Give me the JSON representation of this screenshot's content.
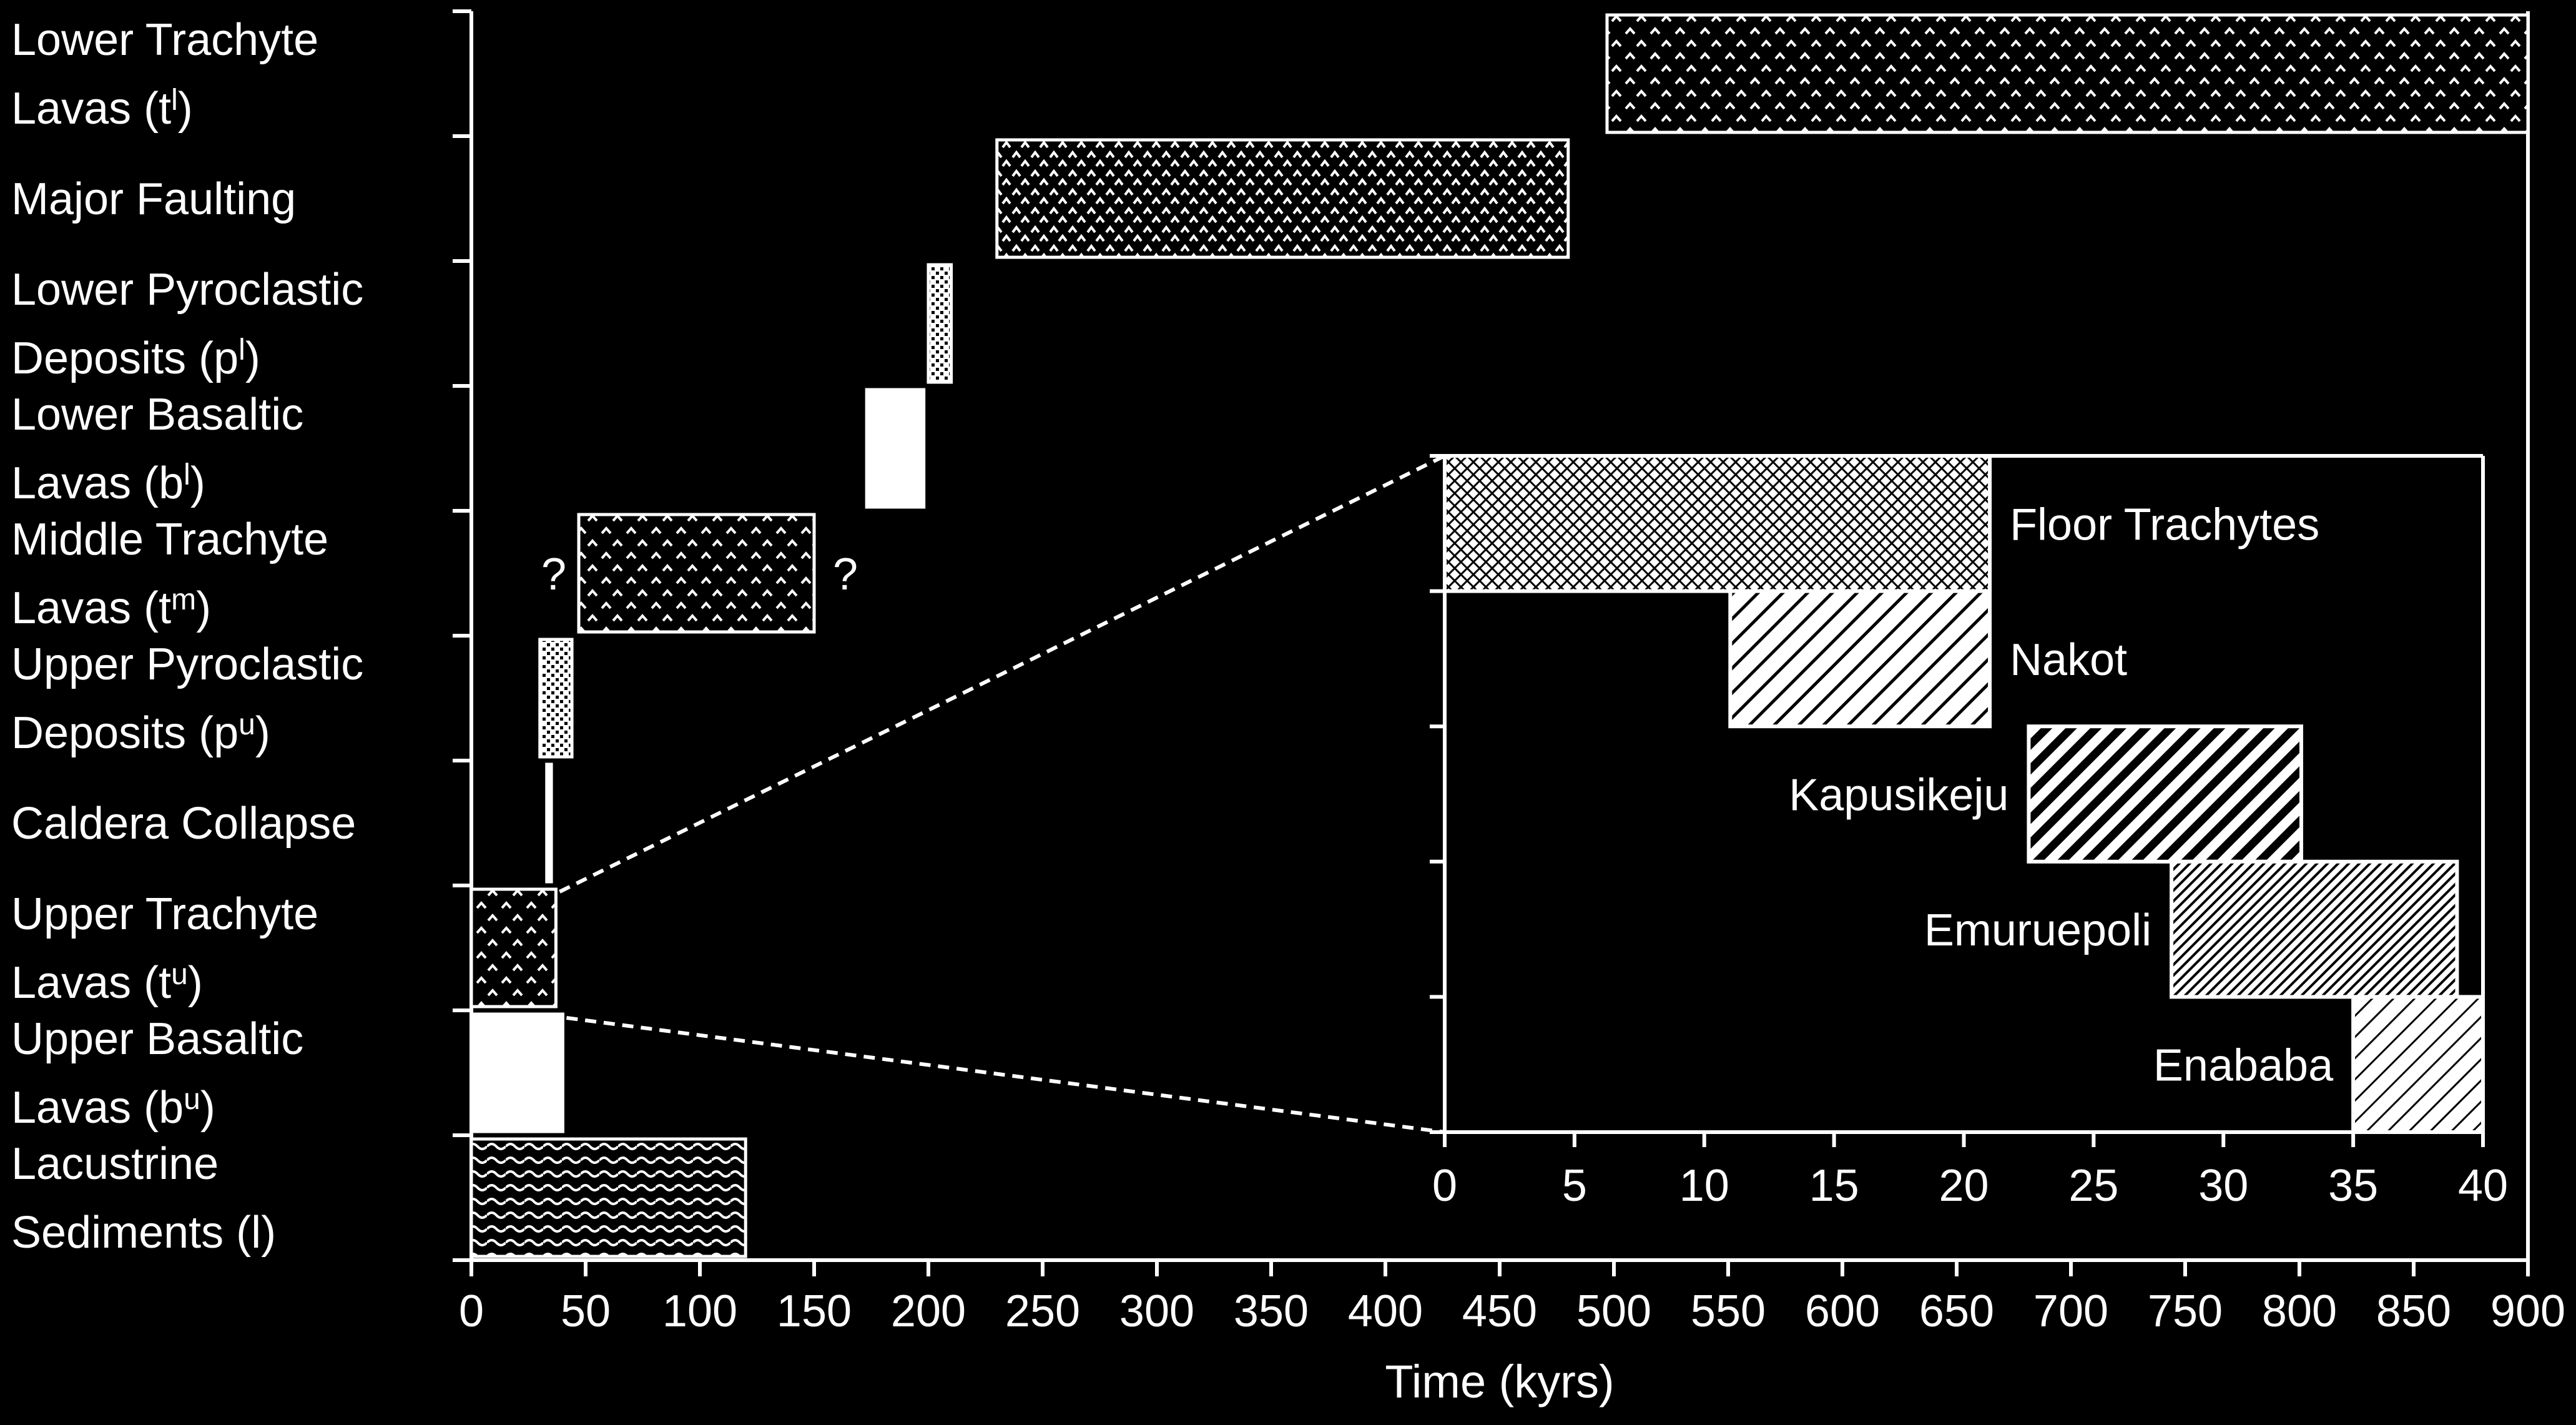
{
  "chart_data": [
    {
      "type": "bar",
      "subtype": "horizontal-range",
      "xlabel": "Time (kyrs)",
      "xlim": [
        0,
        900
      ],
      "xticks": [
        "0",
        "50",
        "100",
        "150",
        "200",
        "250",
        "300",
        "350",
        "400",
        "450",
        "500",
        "550",
        "600",
        "650",
        "700",
        "750",
        "800",
        "850",
        "900"
      ],
      "categories": [
        {
          "label": "Lacustrine Sediments (l)",
          "line1": "Lacustrine",
          "line2": "Sediments (l)"
        },
        {
          "label": "Upper Basaltic Lavas (bu)",
          "line1": "Upper Basaltic",
          "line2_main": "Lavas (b",
          "line2_sup": "u",
          "line2_end": ")"
        },
        {
          "label": "Upper Trachyte Lavas (tu)",
          "line1": "Upper Trachyte",
          "line2_main": "Lavas (t",
          "line2_sup": "u",
          "line2_end": ")"
        },
        {
          "label": "Caldera Collapse",
          "line1": "Caldera Collapse"
        },
        {
          "label": "Upper Pyroclastic Deposits (pu)",
          "line1": "Upper Pyroclastic",
          "line2_main": "Deposits (p",
          "line2_sup": "u",
          "line2_end": ")"
        },
        {
          "label": "Middle Trachyte Lavas (tm)",
          "line1": "Middle Trachyte",
          "line2_main": "Lavas (t",
          "line2_sup": "m",
          "line2_end": ")"
        },
        {
          "label": "Lower Basaltic Lavas (bl)",
          "line1": "Lower Basaltic",
          "line2_main": "Lavas (b",
          "line2_sup": "l",
          "line2_end": ")"
        },
        {
          "label": "Lower Pyroclastic Deposits (pl)",
          "line1": "Lower Pyroclastic",
          "line2_main": "Deposits (p",
          "line2_sup": "l",
          "line2_end": ")"
        },
        {
          "label": "Major Faulting",
          "line1": "Major Faulting"
        },
        {
          "label": "Lower Trachyte Lavas (tl)",
          "line1": "Lower Trachyte",
          "line2_main": "Lavas (t",
          "line2_sup": "l",
          "line2_end": ")"
        }
      ],
      "bars": [
        {
          "category": "Lacustrine Sediments (l)",
          "start": 0,
          "end": 120,
          "pattern": "wavy"
        },
        {
          "category": "Upper Basaltic Lavas (bu)",
          "start": 0,
          "end": 40,
          "pattern": "solid-white"
        },
        {
          "category": "Upper Trachyte Lavas (tu)",
          "start": 0,
          "end": 37,
          "pattern": "v-hatch"
        },
        {
          "category": "Caldera Collapse",
          "start": 33,
          "end": 35,
          "pattern": "solid-white"
        },
        {
          "category": "Upper Pyroclastic Deposits (pu)",
          "start": 30,
          "end": 44,
          "pattern": "dots"
        },
        {
          "category": "Middle Trachyte Lavas (tm)",
          "start": 47,
          "end": 150,
          "pattern": "v-hatch"
        },
        {
          "category": "Lower Basaltic Lavas (bl)",
          "start": 173,
          "end": 198,
          "pattern": "solid-white"
        },
        {
          "category": "Lower Pyroclastic Deposits (pl)",
          "start": 200,
          "end": 210,
          "pattern": "dots"
        },
        {
          "category": "Major Faulting",
          "start": 230,
          "end": 480,
          "pattern": "v-hatch-dense"
        },
        {
          "category": "Lower Trachyte Lavas (tl)",
          "start": 497,
          "end": 900,
          "pattern": "v-hatch"
        }
      ],
      "annotations": [
        "?",
        "?"
      ]
    },
    {
      "type": "bar",
      "subtype": "horizontal-range-inset",
      "xlim": [
        0,
        40
      ],
      "xticks": [
        "0",
        "5",
        "10",
        "15",
        "20",
        "25",
        "30",
        "35",
        "40"
      ],
      "bars": [
        {
          "name": "Floor Trachytes",
          "start": 0,
          "end": 21,
          "pattern": "crosshatch"
        },
        {
          "name": "Nakot",
          "start": 11,
          "end": 21,
          "pattern": "diag-medium"
        },
        {
          "name": "Kapusikeju",
          "start": 22.5,
          "end": 33,
          "pattern": "diag-bold"
        },
        {
          "name": "Emuruepoli",
          "start": 28,
          "end": 39,
          "pattern": "diag-fine"
        },
        {
          "name": "Enababa",
          "start": 35,
          "end": 40,
          "pattern": "diag-light"
        }
      ]
    }
  ]
}
